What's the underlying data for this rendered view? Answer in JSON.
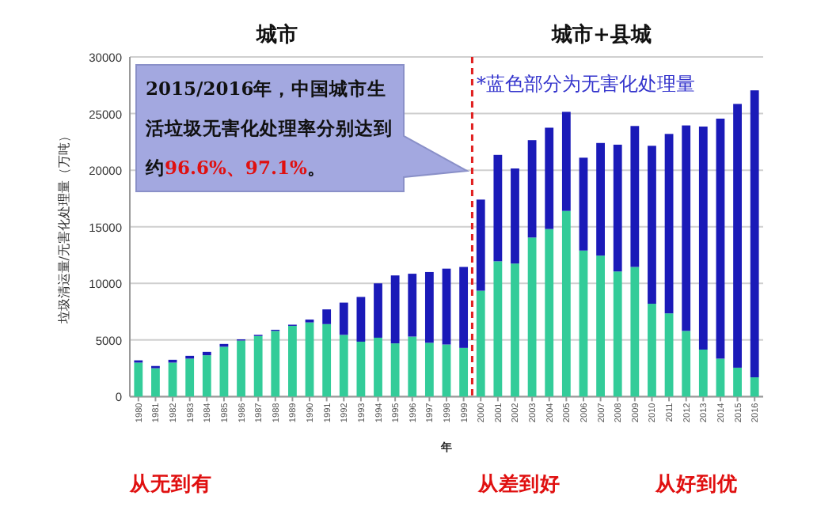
{
  "chart_data": {
    "type": "bar",
    "stacked": true,
    "ylabel": "垃圾清运量/无害化处理量（万吨）",
    "xlabel": "年",
    "x": [
      1980,
      1981,
      1982,
      1983,
      1984,
      1985,
      1986,
      1987,
      1988,
      1989,
      1990,
      1991,
      1992,
      1993,
      1994,
      1995,
      1996,
      1997,
      1998,
      1999,
      2000,
      2001,
      2002,
      2003,
      2004,
      2005,
      2006,
      2007,
      2008,
      2009,
      2010,
      2011,
      2012,
      2013,
      2014,
      2015,
      2016
    ],
    "xlim": [
      1979.5,
      2016.5
    ],
    "xticks": [
      1980,
      1981,
      1982,
      1983,
      1984,
      1985,
      1986,
      1987,
      1988,
      1989,
      1990,
      1991,
      1992,
      1993,
      1994,
      1995,
      1996,
      1997,
      1998,
      1999,
      2000,
      2001,
      2002,
      2003,
      2004,
      2005,
      2006,
      2007,
      2008,
      2009,
      2010,
      2011,
      2012,
      2013,
      2014,
      2015,
      2016
    ],
    "ylim": [
      0,
      30000
    ],
    "yticks": [
      0,
      5000,
      10000,
      15000,
      20000,
      25000,
      30000
    ],
    "grid": "y",
    "series": [
      {
        "color": "#33cc99",
        "values": [
          3000,
          2500,
          3000,
          3350,
          3650,
          4400,
          4950,
          5350,
          5800,
          6250,
          6550,
          6400,
          5450,
          4850,
          5200,
          4700,
          5300,
          4750,
          4600,
          4300,
          9350,
          11950,
          11750,
          14050,
          14800,
          16400,
          12900,
          12450,
          11050,
          11450,
          8200,
          7350,
          5800,
          4150,
          3350,
          2550,
          1700
        ]
      },
      {
        "color": "#1a1ab8",
        "values": [
          200,
          200,
          250,
          250,
          300,
          250,
          100,
          100,
          100,
          100,
          250,
          1300,
          2850,
          3950,
          4800,
          6000,
          5550,
          6250,
          6700,
          7150,
          8050,
          9400,
          8400,
          8600,
          8950,
          8750,
          8200,
          9950,
          11200,
          12450,
          13950,
          15850,
          18150,
          19700,
          21200,
          23300,
          25350
        ]
      }
    ],
    "ref_lines": [
      {
        "axis": "x",
        "value": 1999.5,
        "color": "#e02020",
        "line_style": "dashed"
      }
    ],
    "annotations": [
      "城市",
      "城市+县城",
      "2015/2016年，中国城市生活垃圾无害化处理率分别达到约**96.6%、97.1%**。",
      "*蓝色部分为无害化处理量",
      "从无到有",
      "从差到好",
      "从好到优"
    ]
  }
}
